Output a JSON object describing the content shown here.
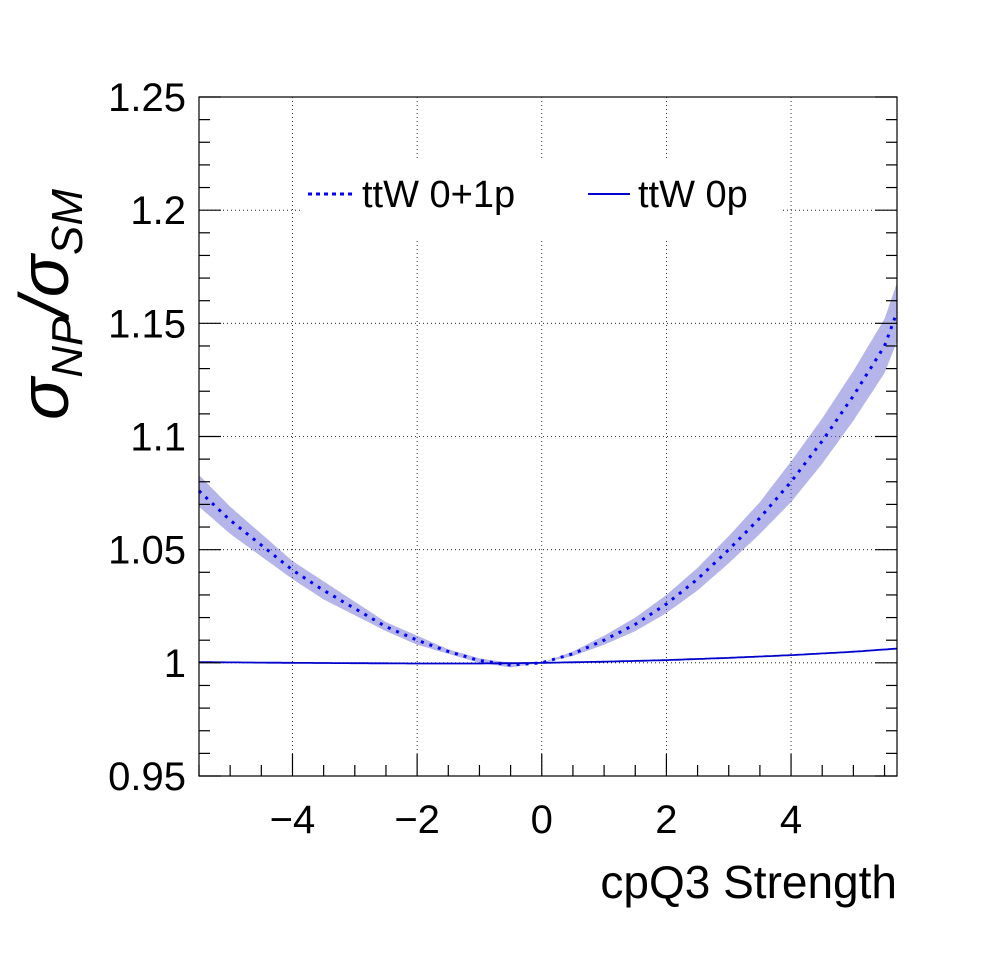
{
  "chart_data": {
    "type": "line",
    "xlabel": "cpQ3 Strength",
    "ylabel": {
      "sym1": "σ",
      "sub1": "NP",
      "slash": "/",
      "sym2": "σ",
      "sub2": "SM"
    },
    "xlim": [
      -5.5,
      5.7
    ],
    "ylim": [
      0.95,
      1.25
    ],
    "x_ticks": [
      -4,
      -2,
      0,
      2,
      4
    ],
    "x_tick_labels": [
      "−4",
      "−2",
      "0",
      "2",
      "4"
    ],
    "y_ticks": [
      0.95,
      1.0,
      1.05,
      1.1,
      1.15,
      1.2,
      1.25
    ],
    "y_tick_labels": [
      "0.95",
      "1",
      "1.05",
      "1.1",
      "1.15",
      "1.2",
      "1.25"
    ],
    "grid": true,
    "legend_position": "top",
    "series": [
      {
        "name": "ttW 0+1p",
        "style": "dotted",
        "color": "#0000ff",
        "band_color": "#5a5ad0",
        "x": [
          -5.5,
          -5.0,
          -4.5,
          -4.0,
          -3.5,
          -3.0,
          -2.5,
          -2.0,
          -1.5,
          -1.0,
          -0.5,
          0.0,
          0.5,
          1.0,
          1.5,
          2.0,
          2.5,
          3.0,
          3.5,
          4.0,
          4.5,
          5.0,
          5.5,
          5.7
        ],
        "y": [
          1.076,
          1.063,
          1.052,
          1.041,
          1.032,
          1.024,
          1.016,
          1.01,
          1.005,
          1.001,
          0.999,
          1.0,
          1.004,
          1.01,
          1.017,
          1.026,
          1.037,
          1.05,
          1.064,
          1.08,
          1.098,
          1.118,
          1.14,
          1.155
        ],
        "band_halfwidth": [
          0.007,
          0.006,
          0.005,
          0.004,
          0.004,
          0.003,
          0.002,
          0.002,
          0.001,
          0.001,
          0.001,
          0.0,
          0.001,
          0.002,
          0.003,
          0.004,
          0.005,
          0.006,
          0.007,
          0.009,
          0.01,
          0.011,
          0.012,
          0.013
        ]
      },
      {
        "name": "ttW 0p",
        "style": "solid",
        "color": "#0000cc",
        "x": [
          -5.5,
          -4.0,
          -2.0,
          -1.0,
          0.0,
          1.0,
          2.0,
          3.0,
          4.0,
          5.0,
          5.7
        ],
        "y": [
          1.0003,
          1.0,
          0.9997,
          0.9997,
          1.0,
          1.0005,
          1.0012,
          1.0022,
          1.0034,
          1.0049,
          1.0063
        ]
      }
    ]
  }
}
